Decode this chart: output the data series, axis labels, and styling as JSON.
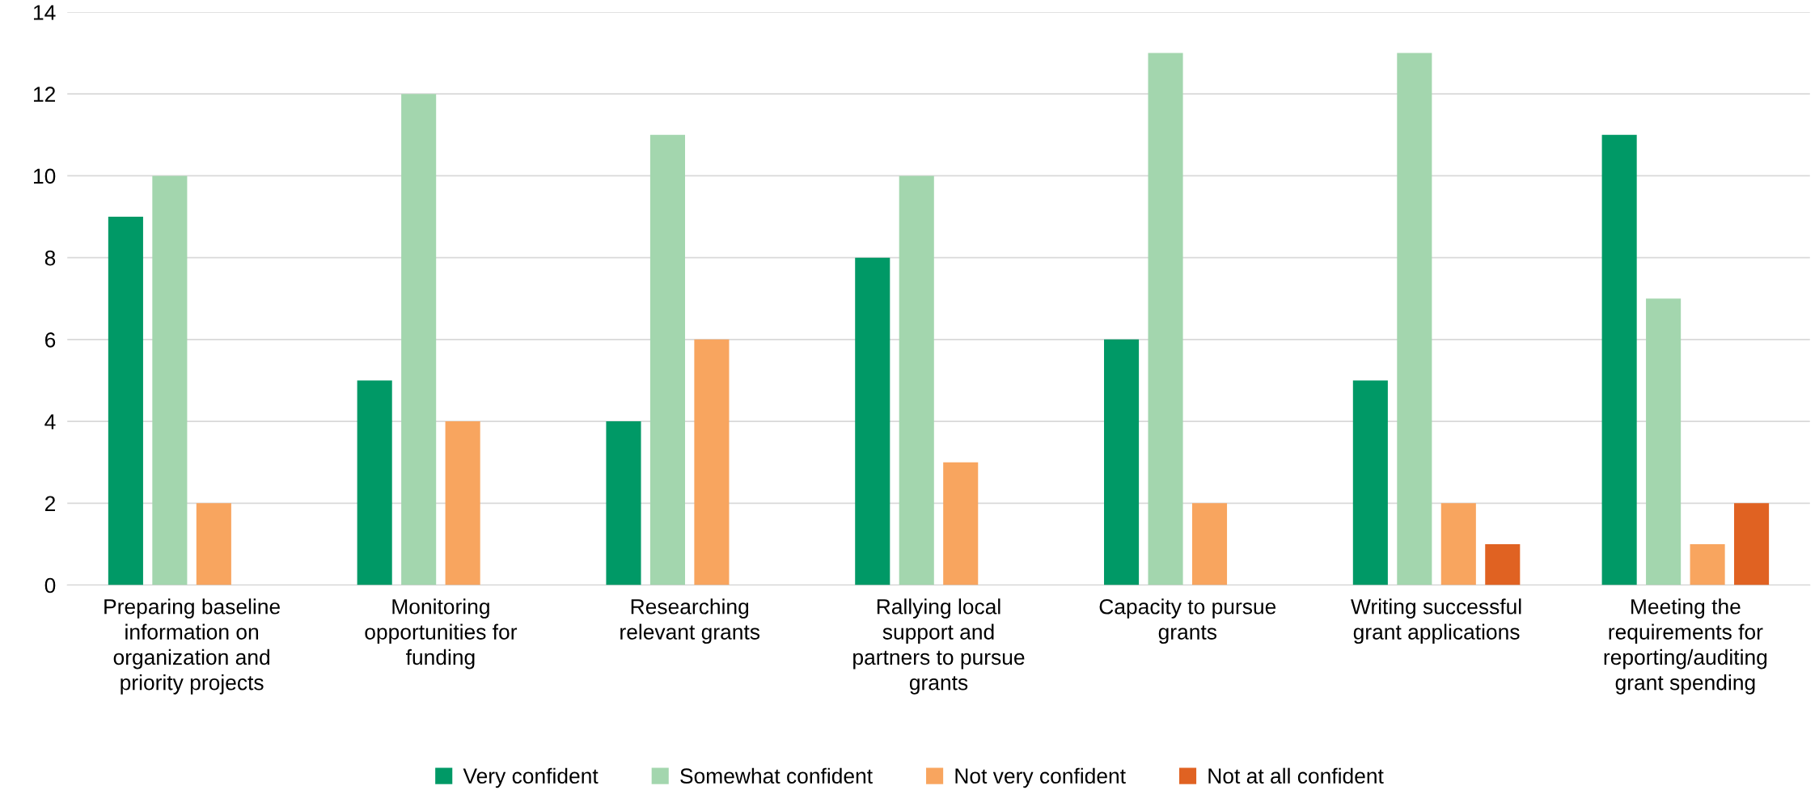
{
  "chart_data": {
    "type": "bar",
    "categories": [
      "Preparing baseline\ninformation on\norganization and\npriority projects",
      "Monitoring\nopportunities for\nfunding",
      "Researching\nrelevant grants",
      "Rallying local\nsupport and\npartners to pursue\ngrants",
      "Capacity to pursue\ngrants",
      "Writing successful\ngrant applications",
      "Meeting the\nrequirements for\nreporting/auditing\ngrant spending"
    ],
    "series": [
      {
        "name": "Very confident",
        "color": "#009966",
        "values": [
          9,
          5,
          4,
          8,
          6,
          5,
          11
        ]
      },
      {
        "name": "Somewhat confident",
        "color": "#a3d6ae",
        "values": [
          10,
          12,
          11,
          10,
          13,
          13,
          7
        ]
      },
      {
        "name": "Not very confident",
        "color": "#f8a55f",
        "values": [
          2,
          4,
          6,
          3,
          2,
          2,
          1
        ]
      },
      {
        "name": "Not at all confident",
        "color": "#e06222",
        "values": [
          null,
          null,
          null,
          null,
          null,
          1,
          2
        ]
      }
    ],
    "ylim": [
      0,
      14
    ],
    "yticks": [
      0,
      2,
      4,
      6,
      8,
      10,
      12,
      14
    ],
    "grid": "y",
    "legend": "bottom"
  }
}
